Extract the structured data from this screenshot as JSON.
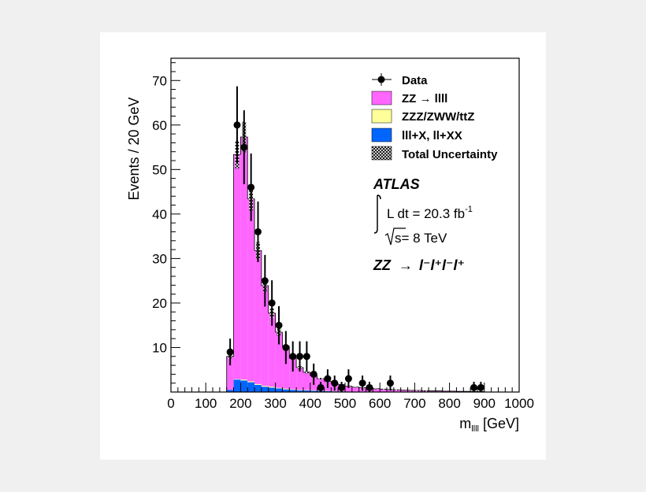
{
  "chart_data": {
    "type": "bar",
    "title": "",
    "xlabel_main": "m",
    "xlabel_sub": "llll",
    "xlabel_unit": "[GeV]",
    "ylabel": "Events / 20 GeV",
    "xlim": [
      0,
      1000
    ],
    "ylim": [
      0,
      75
    ],
    "log_scale": false,
    "grid": false,
    "legend_placement": "top-right",
    "x_ticks": [
      0,
      100,
      200,
      300,
      400,
      500,
      600,
      700,
      800,
      900,
      1000
    ],
    "y_ticks": [
      10,
      20,
      30,
      40,
      50,
      60,
      70
    ],
    "bin_edges": [
      160,
      180,
      200,
      220,
      240,
      260,
      280,
      300,
      320,
      340,
      360,
      380,
      400,
      420,
      440,
      460,
      480,
      500,
      520,
      540,
      560,
      580,
      600,
      620,
      640,
      660,
      680,
      700,
      720,
      740,
      760,
      780,
      800,
      820,
      840,
      860,
      880,
      900
    ],
    "stacked_series": [
      {
        "name": "lll+X, ll+XX",
        "color": "#0066ff",
        "values": [
          0.5,
          2.8,
          2.6,
          2.2,
          1.6,
          1.2,
          1.0,
          0.8,
          0.6,
          0.5,
          0.4,
          0.35,
          0.3,
          0.25,
          0.2,
          0.15,
          0.15,
          0.1,
          0.1,
          0.1,
          0.1,
          0.05,
          0.05,
          0.05,
          0.05,
          0.05,
          0.05,
          0.05,
          0,
          0,
          0,
          0,
          0,
          0,
          0,
          0,
          0
        ]
      },
      {
        "name": "ZZZ/ZWW/ttZ",
        "color": "#ffff99",
        "values": [
          0,
          0.1,
          0.2,
          0.2,
          0.2,
          0.2,
          0.2,
          0.15,
          0.15,
          0.1,
          0.1,
          0.1,
          0.1,
          0.05,
          0.05,
          0.05,
          0.05,
          0,
          0,
          0,
          0,
          0,
          0,
          0,
          0,
          0,
          0,
          0,
          0,
          0,
          0,
          0,
          0,
          0,
          0,
          0,
          0
        ]
      },
      {
        "name": "ZZ → llll",
        "color": "#ff66ff",
        "values": [
          7.5,
          50.5,
          54.5,
          41.0,
          30.0,
          22.5,
          16.5,
          12.5,
          9.5,
          7.0,
          5.0,
          4.0,
          3.3,
          2.7,
          2.2,
          1.8,
          1.5,
          1.2,
          1.0,
          0.9,
          0.8,
          0.7,
          0.6,
          0.5,
          0.45,
          0.4,
          0.35,
          0.3,
          0.3,
          0.25,
          0.25,
          0.2,
          0.2,
          0.15,
          0.15,
          0.1,
          0.1
        ]
      }
    ],
    "total_uncertainty_band": {
      "name": "Total Uncertainty",
      "rel_error": 0.06
    },
    "data": {
      "name": "Data",
      "x": [
        170,
        190,
        210,
        230,
        250,
        270,
        290,
        310,
        330,
        350,
        370,
        390,
        410,
        430,
        450,
        470,
        490,
        510,
        550,
        570,
        630,
        870,
        890
      ],
      "y": [
        9,
        60,
        55,
        46,
        36,
        25,
        20,
        15,
        10,
        8,
        8,
        8,
        4,
        1,
        3,
        2,
        1,
        3,
        2,
        1,
        2,
        1,
        1
      ],
      "err": [
        3.0,
        8.7,
        8.3,
        7.6,
        6.8,
        5.8,
        5.1,
        4.3,
        3.7,
        3.4,
        3.4,
        3.4,
        2.4,
        1.3,
        2.1,
        1.7,
        1.3,
        2.1,
        1.7,
        1.3,
        1.7,
        1.3,
        1.3
      ]
    },
    "legend": [
      {
        "label": "Data",
        "kind": "marker"
      },
      {
        "label": "ZZ  → llll",
        "kind": "fill",
        "color": "#ff66ff"
      },
      {
        "label": "ZZZ/ZWW/ttZ",
        "kind": "fill",
        "color": "#ffff99"
      },
      {
        "label": "lll+X, ll+XX",
        "kind": "fill",
        "color": "#0066ff"
      },
      {
        "label": "Total Uncertainty",
        "kind": "hatch"
      }
    ],
    "annotations": {
      "experiment": "ATLAS",
      "lumi_prefix": "L dt = 20.3 fb",
      "lumi_exp": "-1",
      "energy": "s= 8 TeV",
      "channel_prefix": "ZZ",
      "channel_arrow": "→",
      "channel_final": "l⁻l⁺l⁻l⁺"
    }
  }
}
